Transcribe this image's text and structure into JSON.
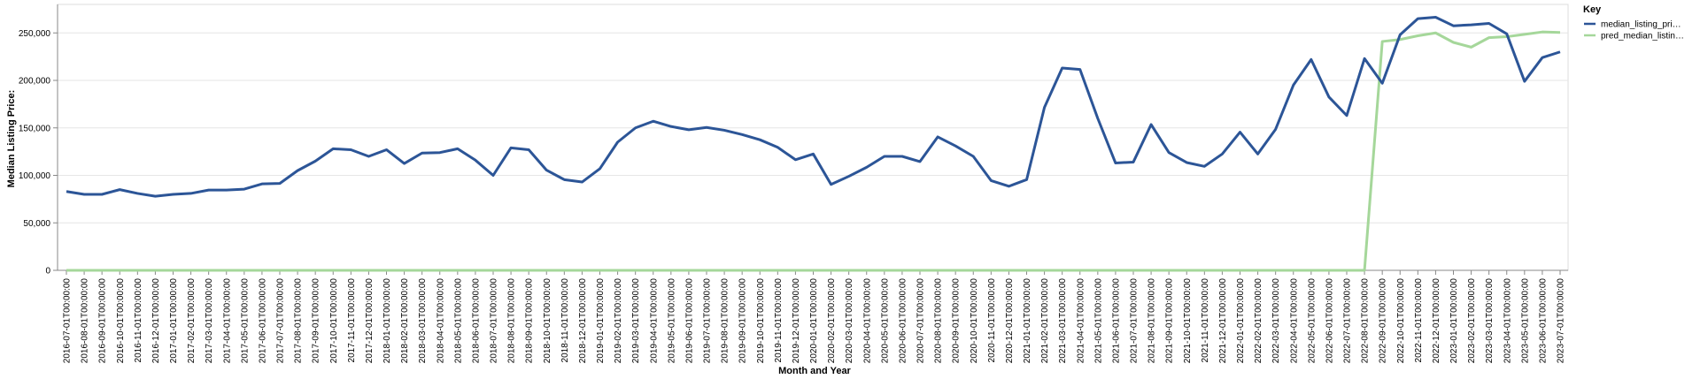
{
  "chart_data": {
    "type": "line",
    "xlabel": "Month and Year",
    "ylabel": "Median Listing Price:",
    "ylim": [
      0,
      280000
    ],
    "yticks": [
      0,
      50000,
      100000,
      150000,
      200000,
      250000
    ],
    "ytick_labels": [
      "0",
      "50,000",
      "100,000",
      "150,000",
      "200,000",
      "250,000"
    ],
    "grid": true,
    "legend_position": "right",
    "legend_title": "Key",
    "categories": [
      "2016-07-01T00:00:00",
      "2016-08-01T00:00:00",
      "2016-09-01T00:00:00",
      "2016-10-01T00:00:00",
      "2016-11-01T00:00:00",
      "2016-12-01T00:00:00",
      "2017-01-01T00:00:00",
      "2017-02-01T00:00:00",
      "2017-03-01T00:00:00",
      "2017-04-01T00:00:00",
      "2017-05-01T00:00:00",
      "2017-06-01T00:00:00",
      "2017-07-01T00:00:00",
      "2017-08-01T00:00:00",
      "2017-09-01T00:00:00",
      "2017-10-01T00:00:00",
      "2017-11-01T00:00:00",
      "2017-12-01T00:00:00",
      "2018-01-01T00:00:00",
      "2018-02-01T00:00:00",
      "2018-03-01T00:00:00",
      "2018-04-01T00:00:00",
      "2018-05-01T00:00:00",
      "2018-06-01T00:00:00",
      "2018-07-01T00:00:00",
      "2018-08-01T00:00:00",
      "2018-09-01T00:00:00",
      "2018-10-01T00:00:00",
      "2018-11-01T00:00:00",
      "2018-12-01T00:00:00",
      "2019-01-01T00:00:00",
      "2019-02-01T00:00:00",
      "2019-03-01T00:00:00",
      "2019-04-01T00:00:00",
      "2019-05-01T00:00:00",
      "2019-06-01T00:00:00",
      "2019-07-01T00:00:00",
      "2019-08-01T00:00:00",
      "2019-09-01T00:00:00",
      "2019-10-01T00:00:00",
      "2019-11-01T00:00:00",
      "2019-12-01T00:00:00",
      "2020-01-01T00:00:00",
      "2020-02-01T00:00:00",
      "2020-03-01T00:00:00",
      "2020-04-01T00:00:00",
      "2020-05-01T00:00:00",
      "2020-06-01T00:00:00",
      "2020-07-01T00:00:00",
      "2020-08-01T00:00:00",
      "2020-09-01T00:00:00",
      "2020-10-01T00:00:00",
      "2020-11-01T00:00:00",
      "2020-12-01T00:00:00",
      "2021-01-01T00:00:00",
      "2021-02-01T00:00:00",
      "2021-03-01T00:00:00",
      "2021-04-01T00:00:00",
      "2021-05-01T00:00:00",
      "2021-06-01T00:00:00",
      "2021-07-01T00:00:00",
      "2021-08-01T00:00:00",
      "2021-09-01T00:00:00",
      "2021-10-01T00:00:00",
      "2021-11-01T00:00:00",
      "2021-12-01T00:00:00",
      "2022-01-01T00:00:00",
      "2022-02-01T00:00:00",
      "2022-03-01T00:00:00",
      "2022-04-01T00:00:00",
      "2022-05-01T00:00:00",
      "2022-06-01T00:00:00",
      "2022-07-01T00:00:00",
      "2022-08-01T00:00:00",
      "2022-09-01T00:00:00",
      "2022-10-01T00:00:00",
      "2022-11-01T00:00:00",
      "2022-12-01T00:00:00",
      "2023-01-01T00:00:00",
      "2023-02-01T00:00:00",
      "2023-03-01T00:00:00",
      "2023-04-01T00:00:00",
      "2023-05-01T00:00:00",
      "2023-06-01T00:00:00",
      "2023-07-01T00:00:00"
    ],
    "series": [
      {
        "name": "median_listing_pri…",
        "color": "#2c5597",
        "values": [
          83000,
          80000,
          80000,
          85000,
          81000,
          78000,
          80000,
          81000,
          84500,
          84500,
          85500,
          91000,
          91500,
          105000,
          115000,
          128000,
          127000,
          120000,
          127000,
          112500,
          123500,
          124000,
          128000,
          116000,
          100000,
          129000,
          127000,
          105500,
          95500,
          93000,
          107000,
          135000,
          150000,
          157000,
          151500,
          148000,
          150500,
          147500,
          143000,
          137500,
          129500,
          116500,
          122500,
          90500,
          99000,
          108500,
          120000,
          120000,
          114500,
          140500,
          131000,
          120000,
          94500,
          88500,
          95500,
          171500,
          213000,
          211500,
          160000,
          113000,
          114000,
          153500,
          124000,
          113500,
          109500,
          122500,
          145500,
          122500,
          148500,
          195000,
          222000,
          182500,
          163000,
          223000,
          197000,
          248000,
          265000,
          266500,
          257500,
          258500,
          260000,
          249000,
          199000,
          224000,
          230000
        ]
      },
      {
        "name": "pred_median_listin…",
        "color": "#a5d79a",
        "values": [
          0,
          0,
          0,
          0,
          0,
          0,
          0,
          0,
          0,
          0,
          0,
          0,
          0,
          0,
          0,
          0,
          0,
          0,
          0,
          0,
          0,
          0,
          0,
          0,
          0,
          0,
          0,
          0,
          0,
          0,
          0,
          0,
          0,
          0,
          0,
          0,
          0,
          0,
          0,
          0,
          0,
          0,
          0,
          0,
          0,
          0,
          0,
          0,
          0,
          0,
          0,
          0,
          0,
          0,
          0,
          0,
          0,
          0,
          0,
          0,
          0,
          0,
          0,
          0,
          0,
          0,
          0,
          0,
          0,
          0,
          0,
          0,
          0,
          0,
          241000,
          243000,
          247000,
          250000,
          240000,
          235000,
          245000,
          246000,
          248500,
          251000,
          250500
        ]
      }
    ]
  }
}
